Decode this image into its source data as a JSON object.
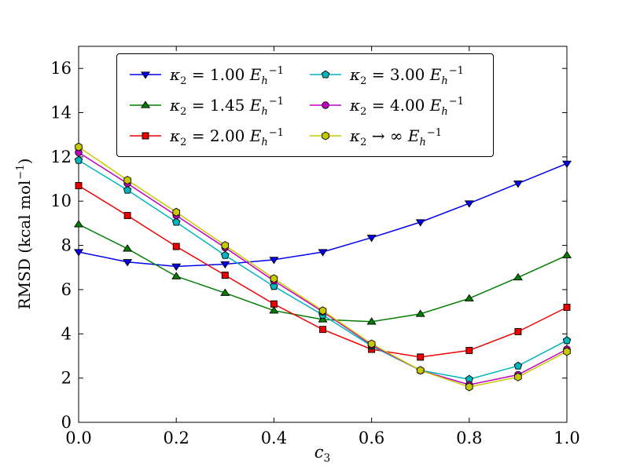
{
  "figure": {
    "background": "#ffffff",
    "axes_color": "#000000",
    "text_color": "#000000"
  },
  "chart_data": {
    "type": "line",
    "title": "",
    "xlabel": {
      "sym": "c",
      "sub": "3"
    },
    "ylabel": {
      "prefix": "RMSD (kcal mol",
      "exp": "−1",
      "suffix": ")"
    },
    "xlim": [
      0,
      1
    ],
    "ylim": [
      0,
      17
    ],
    "xticks": [
      "0.0",
      "0.2",
      "0.4",
      "0.6",
      "0.8",
      "1.0"
    ],
    "xtick_values": [
      0,
      0.2,
      0.4,
      0.6,
      0.8,
      1.0
    ],
    "yticks": [
      "0",
      "2",
      "4",
      "6",
      "8",
      "10",
      "12",
      "14",
      "16"
    ],
    "ytick_values": [
      0,
      2,
      4,
      6,
      8,
      10,
      12,
      14,
      16
    ],
    "grid": false,
    "legend": {
      "position": "upper center",
      "columns": 2
    },
    "x": [
      0,
      0.1,
      0.2,
      0.3,
      0.4,
      0.5,
      0.6,
      0.7,
      0.8,
      0.9,
      1.0
    ],
    "series": [
      {
        "name": "kappa2-1.00",
        "label": {
          "sym": "κ",
          "sym_sub": "2",
          "rel": "=",
          "val": "1.00",
          "unit": "E",
          "unit_sub": "h",
          "unit_exp": "−1"
        },
        "color": "#0000ee",
        "marker": "triangle-down",
        "values": [
          7.7,
          7.25,
          7.05,
          7.15,
          7.35,
          7.7,
          8.35,
          9.05,
          9.9,
          10.8,
          11.7
        ]
      },
      {
        "name": "kappa2-1.45",
        "label": {
          "sym": "κ",
          "sym_sub": "2",
          "rel": "=",
          "val": "1.45",
          "unit": "E",
          "unit_sub": "h",
          "unit_exp": "−1"
        },
        "color": "#007f00",
        "marker": "triangle-up",
        "values": [
          8.95,
          7.85,
          6.6,
          5.85,
          5.05,
          4.65,
          4.55,
          4.9,
          5.6,
          6.55,
          7.55
        ]
      },
      {
        "name": "kappa2-2.00",
        "label": {
          "sym": "κ",
          "sym_sub": "2",
          "rel": "=",
          "val": "2.00",
          "unit": "E",
          "unit_sub": "h",
          "unit_exp": "−1"
        },
        "color": "#ee0000",
        "marker": "square",
        "values": [
          10.7,
          9.35,
          7.95,
          6.65,
          5.35,
          4.2,
          3.3,
          2.95,
          3.25,
          4.1,
          5.2
        ]
      },
      {
        "name": "kappa2-3.00",
        "label": {
          "sym": "κ",
          "sym_sub": "2",
          "rel": "=",
          "val": "3.00",
          "unit": "E",
          "unit_sub": "h",
          "unit_exp": "−1"
        },
        "color": "#00b5bd",
        "marker": "pentagon",
        "values": [
          11.85,
          10.5,
          9.05,
          7.55,
          6.15,
          4.85,
          3.45,
          2.35,
          1.95,
          2.55,
          3.7
        ]
      },
      {
        "name": "kappa2-4.00",
        "label": {
          "sym": "κ",
          "sym_sub": "2",
          "rel": "=",
          "val": "4.00",
          "unit": "E",
          "unit_sub": "h",
          "unit_exp": "−1"
        },
        "color": "#bf00bf",
        "marker": "circle",
        "values": [
          12.2,
          10.8,
          9.35,
          7.9,
          6.4,
          5.0,
          3.5,
          2.35,
          1.7,
          2.15,
          3.3
        ]
      },
      {
        "name": "kappa2-inf",
        "label": {
          "sym": "κ",
          "sym_sub": "2",
          "rel": "→",
          "val": "∞",
          "unit": "E",
          "unit_sub": "h",
          "unit_exp": "−1"
        },
        "color": "#c8c800",
        "marker": "hexagon",
        "values": [
          12.45,
          10.95,
          9.5,
          8.0,
          6.5,
          5.05,
          3.55,
          2.35,
          1.6,
          2.05,
          3.2
        ]
      }
    ]
  }
}
